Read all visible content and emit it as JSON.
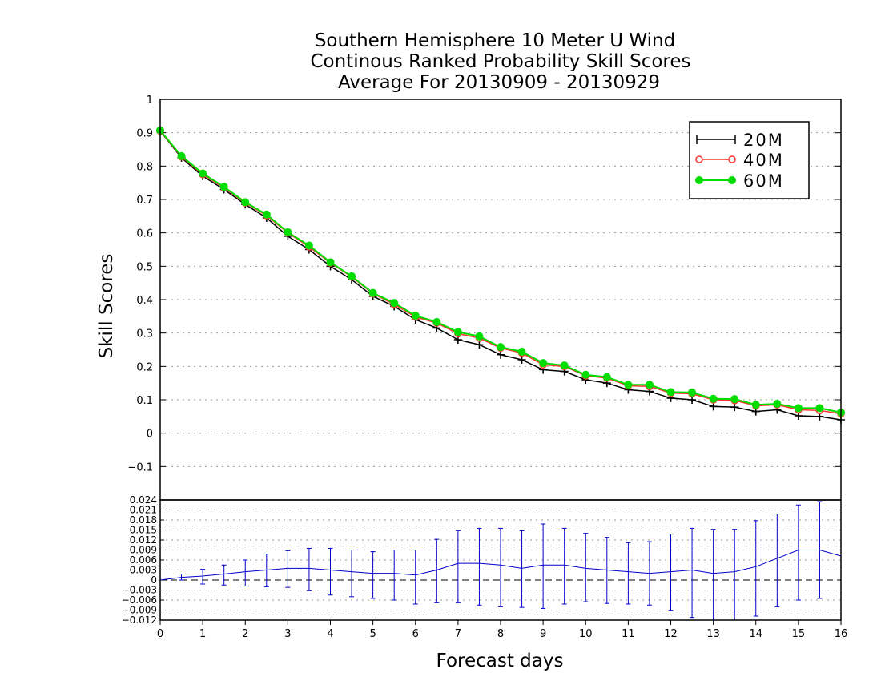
{
  "chart_data": [
    {
      "type": "line",
      "title": "Southern Hemisphere 10 Meter U Wind",
      "subtitle": "Continous Ranked Probability Skill Scores",
      "subtitle2": "Average For 20130909 - 20130929",
      "xlabel": "Forecast days",
      "ylabel": "Skill Scores",
      "xlim": [
        0,
        16
      ],
      "ylim": [
        -0.2,
        1
      ],
      "xticks": [
        "0",
        "1",
        "2",
        "3",
        "4",
        "5",
        "6",
        "7",
        "8",
        "9",
        "10",
        "11",
        "12",
        "13",
        "14",
        "15",
        "16"
      ],
      "yticks": [
        "−0.1",
        "0",
        "0.1",
        "0.2",
        "0.3",
        "0.4",
        "0.5",
        "0.6",
        "0.7",
        "0.8",
        "0.9",
        "1"
      ],
      "grid": true,
      "legend_position": "top-right",
      "x": [
        0,
        0.5,
        1,
        1.5,
        2,
        2.5,
        3,
        3.5,
        4,
        4.5,
        5,
        5.5,
        6,
        6.5,
        7,
        7.5,
        8,
        8.5,
        9,
        9.5,
        10,
        10.5,
        11,
        11.5,
        12,
        12.5,
        13,
        13.5,
        14,
        14.5,
        15,
        15.5,
        16
      ],
      "series": [
        {
          "name": "20M",
          "color": "#000000",
          "marker": "plus",
          "values": [
            0.905,
            0.825,
            0.77,
            0.73,
            0.685,
            0.645,
            0.59,
            0.55,
            0.5,
            0.46,
            0.41,
            0.38,
            0.34,
            0.315,
            0.28,
            0.265,
            0.235,
            0.22,
            0.19,
            0.185,
            0.16,
            0.15,
            0.13,
            0.125,
            0.105,
            0.1,
            0.08,
            0.078,
            0.065,
            0.07,
            0.052,
            0.05,
            0.04
          ]
        },
        {
          "name": "40M",
          "color": "#ff3333",
          "marker": "open-circle",
          "values": [
            0.905,
            0.828,
            0.775,
            0.735,
            0.69,
            0.652,
            0.6,
            0.558,
            0.51,
            0.468,
            0.418,
            0.386,
            0.348,
            0.33,
            0.298,
            0.285,
            0.255,
            0.24,
            0.205,
            0.2,
            0.172,
            0.165,
            0.142,
            0.14,
            0.12,
            0.118,
            0.1,
            0.098,
            0.082,
            0.085,
            0.07,
            0.068,
            0.058
          ]
        },
        {
          "name": "60M",
          "color": "#00dd00",
          "marker": "filled-circle",
          "values": [
            0.907,
            0.83,
            0.778,
            0.738,
            0.692,
            0.655,
            0.602,
            0.562,
            0.512,
            0.47,
            0.42,
            0.39,
            0.352,
            0.333,
            0.303,
            0.29,
            0.258,
            0.244,
            0.21,
            0.203,
            0.175,
            0.168,
            0.145,
            0.145,
            0.123,
            0.122,
            0.103,
            0.102,
            0.085,
            0.088,
            0.075,
            0.075,
            0.062
          ]
        }
      ]
    },
    {
      "type": "line",
      "xlabel": "",
      "ylabel": "",
      "xlim": [
        0,
        16
      ],
      "ylim": [
        -0.012,
        0.024
      ],
      "yticks": [
        "−0.012",
        "−0.009",
        "−0.006",
        "−0.003",
        "0",
        "0.003",
        "0.006",
        "0.009",
        "0.012",
        "0.015",
        "0.018",
        "0.021",
        "0.024"
      ],
      "grid": true,
      "x": [
        0,
        0.5,
        1,
        1.5,
        2,
        2.5,
        3,
        3.5,
        4,
        4.5,
        5,
        5.5,
        6,
        6.5,
        7,
        7.5,
        8,
        8.5,
        9,
        9.5,
        10,
        10.5,
        11,
        11.5,
        12,
        12.5,
        13,
        13.5,
        14,
        14.5,
        15,
        15.5,
        16
      ],
      "series": [
        {
          "name": "",
          "color": "#0000cc",
          "values": [
            0,
            0.0008,
            0.0012,
            0.0018,
            0.0025,
            0.003,
            0.0035,
            0.0035,
            0.003,
            0.0025,
            0.002,
            0.002,
            0.0015,
            0.003,
            0.005,
            0.005,
            0.0045,
            0.0035,
            0.0045,
            0.0045,
            0.0035,
            0.003,
            0.0025,
            0.002,
            0.0025,
            0.003,
            0.002,
            0.0025,
            0.004,
            0.0065,
            0.009,
            0.009,
            0.0072
          ],
          "err_low": [
            0,
            0,
            -0.0012,
            -0.0015,
            -0.0018,
            -0.002,
            -0.0022,
            -0.0032,
            -0.0045,
            -0.005,
            -0.0055,
            -0.006,
            -0.0072,
            -0.0068,
            -0.0068,
            -0.0075,
            -0.008,
            -0.0082,
            -0.0085,
            -0.0072,
            -0.0065,
            -0.007,
            -0.0072,
            -0.0075,
            -0.0092,
            -0.0112,
            -0.012,
            -0.012,
            -0.0108,
            -0.008,
            -0.006,
            -0.0055,
            0
          ],
          "err_high": [
            0,
            0.0018,
            0.0032,
            0.0045,
            0.006,
            0.0078,
            0.0088,
            0.0095,
            0.0095,
            0.009,
            0.0085,
            0.009,
            0.009,
            0.0122,
            0.0148,
            0.0155,
            0.0155,
            0.0148,
            0.0168,
            0.0155,
            0.014,
            0.0128,
            0.0112,
            0.0115,
            0.0138,
            0.0155,
            0.0152,
            0.0152,
            0.0178,
            0.0198,
            0.0225,
            0.0235,
            0
          ]
        }
      ]
    }
  ]
}
